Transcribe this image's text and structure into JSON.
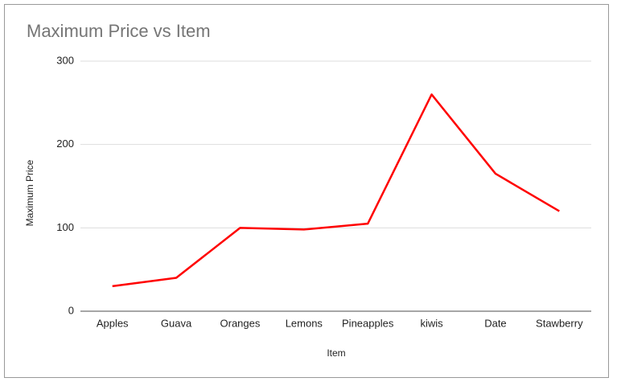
{
  "chart_data": {
    "type": "line",
    "title": "Maximum Price vs Item",
    "x_label": "Item",
    "y_label": "Maximum Price",
    "categories": [
      "Apples",
      "Guava",
      "Oranges",
      "Lemons",
      "Pineapples",
      "kiwis",
      "Date",
      "Stawberry"
    ],
    "series": [
      {
        "name": "Maximum Price",
        "color": "#ff0000",
        "values": [
          30,
          40,
          100,
          98,
          105,
          260,
          165,
          120
        ]
      }
    ],
    "ylim": [
      0,
      300
    ],
    "yticks": [
      0,
      100,
      200,
      300
    ],
    "grid": true
  }
}
